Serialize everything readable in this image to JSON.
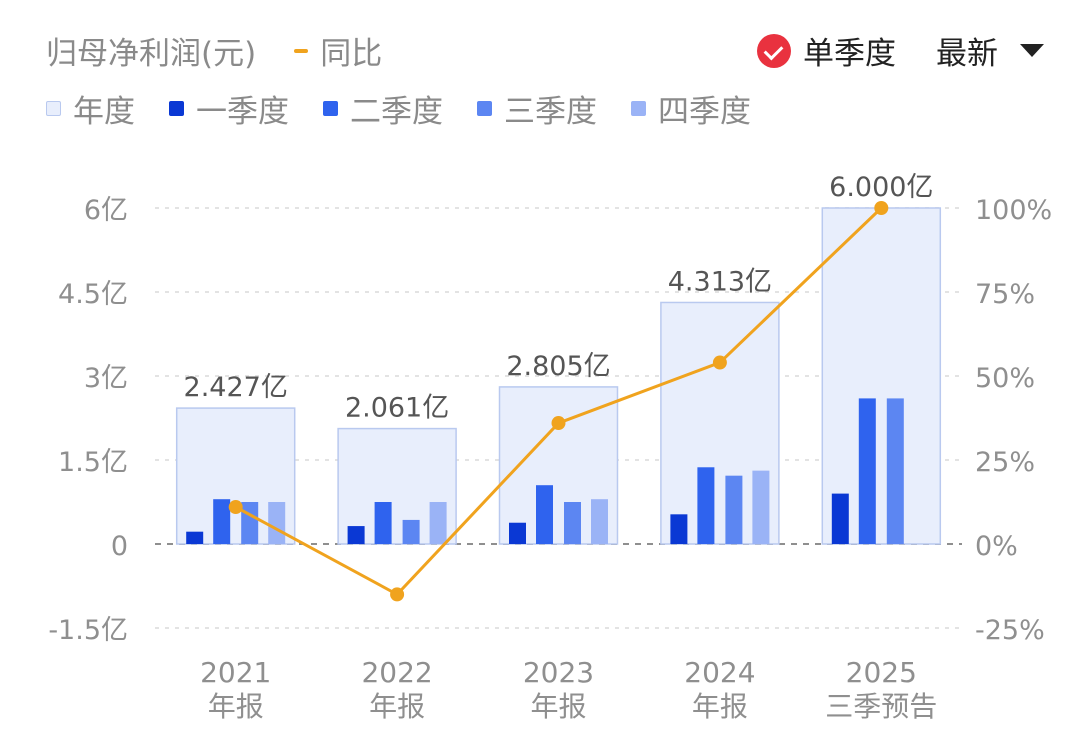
{
  "header": {
    "title": "归母净利润(元)",
    "line_legend": "同比",
    "mode_label": "单季度",
    "sort_label": "最新"
  },
  "legend": [
    {
      "label": "年度",
      "color": "#e8eefc",
      "border": "#b9c9ef"
    },
    {
      "label": "一季度",
      "color": "#0a38d4"
    },
    {
      "label": "二季度",
      "color": "#2f63ee"
    },
    {
      "label": "三季度",
      "color": "#5c86f2"
    },
    {
      "label": "四季度",
      "color": "#9ab3f6"
    }
  ],
  "chart_data": {
    "type": "bar",
    "categories": [
      "2021\n年报",
      "2022\n年报",
      "2023\n年报",
      "2024\n年报",
      "2025\n三季预告"
    ],
    "annual": [
      2.427,
      2.061,
      2.805,
      4.313,
      6.0
    ],
    "annual_labels": [
      "2.427亿",
      "2.061亿",
      "2.805亿",
      "4.313亿",
      "6.000亿"
    ],
    "series": [
      {
        "name": "一季度",
        "values": [
          0.22,
          0.32,
          0.38,
          0.53,
          0.9
        ]
      },
      {
        "name": "二季度",
        "values": [
          0.8,
          0.75,
          1.05,
          1.37,
          2.6
        ]
      },
      {
        "name": "三季度",
        "values": [
          0.75,
          0.43,
          0.75,
          1.22,
          2.6
        ]
      },
      {
        "name": "四季度",
        "values": [
          0.75,
          0.75,
          0.8,
          1.31,
          null
        ]
      }
    ],
    "yoy": {
      "name": "同比",
      "values": [
        11,
        -15,
        36,
        54,
        100
      ]
    },
    "ylim": [
      -1.5,
      6
    ],
    "y_ticks": [
      -1.5,
      0,
      1.5,
      3,
      4.5,
      6
    ],
    "y_tick_labels": [
      "-1.5亿",
      "0",
      "1.5亿",
      "3亿",
      "4.5亿",
      "6亿"
    ],
    "y2lim": [
      -25,
      100
    ],
    "y2_ticks": [
      -25,
      0,
      25,
      50,
      75,
      100
    ],
    "y2_tick_labels": [
      "-25%",
      "0%",
      "25%",
      "50%",
      "75%",
      "100%"
    ]
  }
}
